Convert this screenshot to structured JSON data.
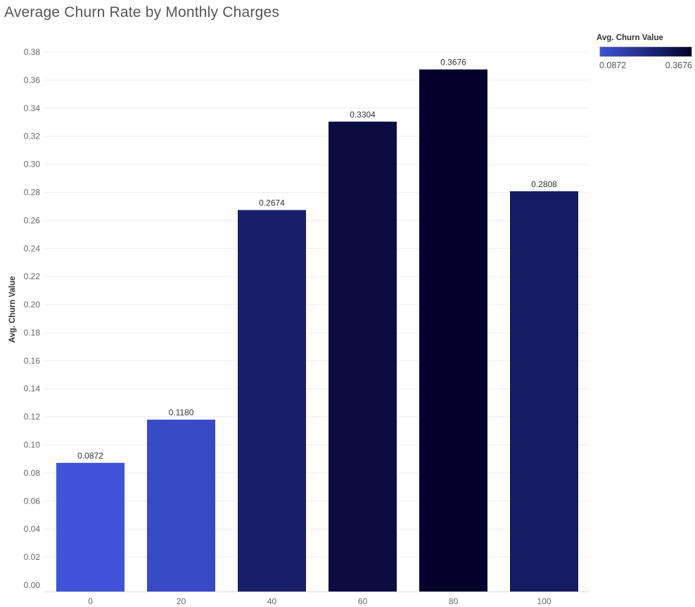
{
  "chart_data": {
    "type": "bar",
    "title": "Average Churn Rate by Monthly Charges",
    "xlabel": "",
    "ylabel": "Avg. Churn Value",
    "categories": [
      "0",
      "20",
      "40",
      "60",
      "80",
      "100"
    ],
    "values": [
      0.0872,
      0.118,
      0.2674,
      0.3304,
      0.3676,
      0.2808
    ],
    "data_labels": [
      "0.0872",
      "0.1180",
      "0.2674",
      "0.3304",
      "0.3676",
      "0.2808"
    ],
    "yticks": [
      0,
      0.02,
      0.04,
      0.06,
      0.08,
      0.1,
      0.12,
      0.14,
      0.16,
      0.18,
      0.2,
      0.22,
      0.24,
      0.26,
      0.28,
      0.3,
      0.32,
      0.34,
      0.36,
      0.38
    ],
    "ytick_labels": [
      "0.00",
      "0.02",
      "0.04",
      "0.06",
      "0.08",
      "0.10",
      "0.12",
      "0.14",
      "0.16",
      "0.18",
      "0.20",
      "0.22",
      "0.24",
      "0.26",
      "0.28",
      "0.30",
      "0.32",
      "0.34",
      "0.36",
      "0.38"
    ],
    "ylim": [
      0,
      0.38
    ],
    "grid": true,
    "legend": {
      "title": "Avg. Churn Value",
      "min_label": "0.0872",
      "max_label": "0.3676",
      "min_value": 0.0872,
      "max_value": 0.3676,
      "color_low": "#4053d9",
      "color_high": "#03012b",
      "placement": "top-right"
    }
  }
}
